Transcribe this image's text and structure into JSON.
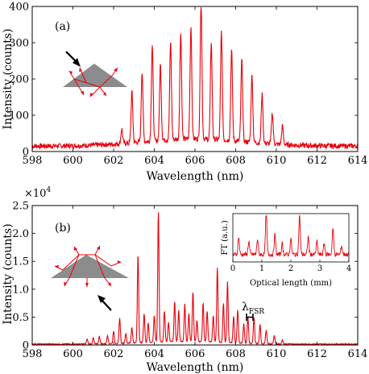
{
  "colors": {
    "spectrum": "#e8000b",
    "frame": "#000000",
    "prism": "#8c8c8c",
    "arrow": "#000000"
  },
  "chart_data": [
    {
      "type": "line",
      "panel_label": "(a)",
      "xlabel": "Wavelength (nm)",
      "ylabel": "Intensity (counts)",
      "xlim": [
        598,
        614
      ],
      "ylim": [
        0,
        400
      ],
      "xticks": [
        "598",
        "600",
        "602",
        "604",
        "606",
        "608",
        "610",
        "612",
        "614"
      ],
      "yticks": [
        "0",
        "100",
        "200",
        "300",
        "400"
      ],
      "baseline": 15,
      "peaks": {
        "x": [
          602.4,
          602.9,
          603.4,
          603.9,
          604.3,
          604.8,
          605.3,
          605.8,
          606.3,
          606.8,
          607.3,
          607.8,
          608.3,
          608.8,
          609.3,
          609.8,
          610.3
        ],
        "y": [
          40,
          140,
          195,
          265,
          210,
          270,
          295,
          310,
          383,
          270,
          300,
          250,
          225,
          185,
          135,
          85,
          50
        ]
      }
    },
    {
      "type": "line",
      "panel_label": "(b)",
      "xlabel": "Wavelength (nm)",
      "ylabel": "Intensity (counts)",
      "y_multiplier": "×10",
      "y_exponent": "4",
      "xlim": [
        598,
        614
      ],
      "ylim": [
        0,
        25000
      ],
      "xticks": [
        "598",
        "600",
        "602",
        "604",
        "606",
        "608",
        "610",
        "612",
        "614"
      ],
      "yticks": [
        "0",
        "0.5",
        "1.0",
        "1.5",
        "2.0",
        "2.5"
      ],
      "annotation": {
        "symbol": "λ",
        "subscript": "FSR",
        "x": 607.5,
        "y": 4300
      },
      "peaks": {
        "x": [
          600.7,
          601.0,
          601.3,
          601.7,
          602.0,
          602.3,
          602.6,
          602.9,
          603.2,
          603.5,
          603.7,
          604.0,
          604.2,
          604.5,
          604.7,
          605.0,
          605.2,
          605.5,
          605.7,
          605.9,
          606.1,
          606.4,
          606.6,
          606.9,
          607.1,
          607.4,
          607.6,
          607.9,
          608.1,
          608.4,
          608.6,
          608.9,
          609.2,
          609.5,
          609.9,
          610.3
        ],
        "y": [
          900,
          1100,
          1400,
          1500,
          2300,
          4500,
          1800,
          2800,
          16000,
          5200,
          3500,
          4800,
          23500,
          5500,
          3500,
          7200,
          5500,
          6800,
          5000,
          9000,
          3800,
          7000,
          5500,
          4800,
          13300,
          7000,
          11000,
          4800,
          6000,
          3500,
          4800,
          4600,
          3400,
          2400,
          1500,
          700
        ]
      },
      "inset": {
        "type": "line",
        "xlabel": "Optical length (mm)",
        "ylabel": "FT (a.u.)",
        "xlim": [
          0,
          4
        ],
        "xticks": [
          "0",
          "1",
          "2",
          "3",
          "4"
        ],
        "peaks": {
          "x": [
            0.2,
            0.55,
            0.85,
            1.15,
            1.45,
            1.7,
            2.0,
            2.3,
            2.6,
            2.9,
            3.15,
            3.45,
            3.75
          ],
          "y": [
            0.4,
            0.3,
            0.35,
            1.0,
            0.45,
            0.25,
            0.35,
            0.92,
            0.4,
            0.3,
            0.25,
            0.6,
            0.2
          ]
        }
      }
    }
  ]
}
